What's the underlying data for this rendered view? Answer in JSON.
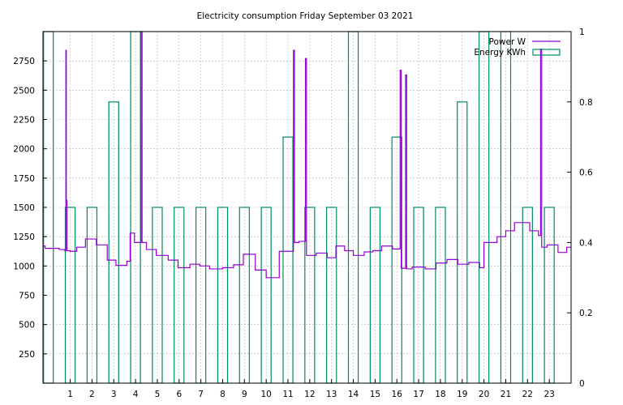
{
  "chart_data": {
    "type": "line",
    "title": "Electricity consumption Friday September 03 2021",
    "xlabel": "",
    "ylabel": "",
    "y2label": "",
    "grid": true,
    "legend_position": "top-right",
    "x_range": [
      -0.25,
      24.0
    ],
    "y_range": [
      0,
      3000
    ],
    "y2_range": [
      0,
      1
    ],
    "x_ticks": [
      1,
      2,
      3,
      4,
      5,
      6,
      7,
      8,
      9,
      10,
      11,
      12,
      13,
      14,
      15,
      16,
      17,
      18,
      19,
      20,
      21,
      22,
      23
    ],
    "y_ticks": [
      250,
      500,
      750,
      1000,
      1250,
      1500,
      1750,
      2000,
      2250,
      2500,
      2750
    ],
    "y2_ticks": [
      0,
      0.2,
      0.4,
      0.6,
      0.8,
      1
    ],
    "series": [
      {
        "name": "Power W",
        "axis": "left",
        "style": "line",
        "color": "#9400d3",
        "points": [
          [
            -0.25,
            1170
          ],
          [
            -0.15,
            1150
          ],
          [
            0.2,
            1150
          ],
          [
            0.5,
            1140
          ],
          [
            0.75,
            1130
          ],
          [
            0.8,
            2840
          ],
          [
            0.82,
            1560
          ],
          [
            0.85,
            1130
          ],
          [
            1.0,
            1125
          ],
          [
            1.3,
            1160
          ],
          [
            1.7,
            1230
          ],
          [
            2.2,
            1180
          ],
          [
            2.7,
            1050
          ],
          [
            3.1,
            1005
          ],
          [
            3.6,
            1040
          ],
          [
            3.75,
            1280
          ],
          [
            3.95,
            1200
          ],
          [
            4.25,
            3000
          ],
          [
            4.3,
            1200
          ],
          [
            4.5,
            1140
          ],
          [
            4.95,
            1090
          ],
          [
            5.5,
            1050
          ],
          [
            5.95,
            985
          ],
          [
            6.5,
            1015
          ],
          [
            6.95,
            1000
          ],
          [
            7.4,
            975
          ],
          [
            8.0,
            985
          ],
          [
            8.5,
            1010
          ],
          [
            8.95,
            1100
          ],
          [
            9.5,
            965
          ],
          [
            10.0,
            900
          ],
          [
            10.6,
            1125
          ],
          [
            11.25,
            2840
          ],
          [
            11.3,
            1200
          ],
          [
            11.5,
            1210
          ],
          [
            11.8,
            2770
          ],
          [
            11.85,
            1090
          ],
          [
            12.3,
            1110
          ],
          [
            12.8,
            1070
          ],
          [
            13.2,
            1170
          ],
          [
            13.6,
            1130
          ],
          [
            14.0,
            1090
          ],
          [
            14.5,
            1120
          ],
          [
            14.9,
            1130
          ],
          [
            15.3,
            1170
          ],
          [
            15.8,
            1145
          ],
          [
            16.15,
            2670
          ],
          [
            16.2,
            980
          ],
          [
            16.4,
            2630
          ],
          [
            16.45,
            975
          ],
          [
            16.7,
            990
          ],
          [
            17.3,
            975
          ],
          [
            17.8,
            1025
          ],
          [
            18.3,
            1055
          ],
          [
            18.8,
            1015
          ],
          [
            19.3,
            1030
          ],
          [
            19.8,
            985
          ],
          [
            20.0,
            1200
          ],
          [
            20.6,
            1250
          ],
          [
            21.0,
            1300
          ],
          [
            21.4,
            1370
          ],
          [
            22.1,
            1300
          ],
          [
            22.5,
            1260
          ],
          [
            22.6,
            2850
          ],
          [
            22.65,
            1160
          ],
          [
            22.9,
            1180
          ],
          [
            23.4,
            1115
          ],
          [
            23.8,
            1160
          ],
          [
            24.0,
            1160
          ]
        ]
      },
      {
        "name": "Energy KWh",
        "axis": "right",
        "style": "bars",
        "color": "#008b66",
        "bar_width": 0.45,
        "bars": [
          [
            0,
            1.0
          ],
          [
            1,
            0.5
          ],
          [
            2,
            0.5
          ],
          [
            3,
            0.8
          ],
          [
            4,
            1.0
          ],
          [
            5,
            0.5
          ],
          [
            6,
            0.5
          ],
          [
            7,
            0.5
          ],
          [
            8,
            0.5
          ],
          [
            9,
            0.5
          ],
          [
            10,
            0.5
          ],
          [
            11,
            0.7
          ],
          [
            12,
            0.5
          ],
          [
            13,
            0.5
          ],
          [
            14,
            1.0
          ],
          [
            15,
            0.5
          ],
          [
            16,
            0.7
          ],
          [
            17,
            0.5
          ],
          [
            18,
            0.5
          ],
          [
            19,
            0.8
          ],
          [
            20,
            1.0
          ],
          [
            21,
            1.0
          ],
          [
            22,
            0.5
          ],
          [
            23,
            0.5
          ]
        ]
      }
    ]
  }
}
